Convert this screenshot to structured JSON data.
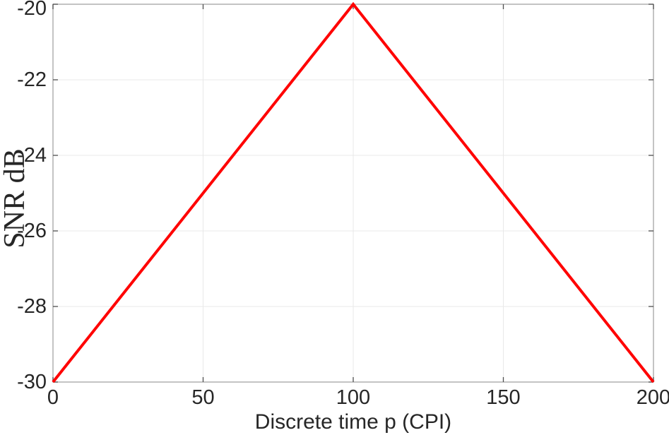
{
  "chart_data": {
    "type": "line",
    "title": "",
    "xlabel": "Discrete time p (CPI)",
    "ylabel": "SNR dB",
    "xlim": [
      0,
      200
    ],
    "ylim": [
      -30,
      -20
    ],
    "xticks": [
      0,
      50,
      100,
      150,
      200
    ],
    "yticks": [
      -30,
      -28,
      -26,
      -24,
      -22,
      -20
    ],
    "xtick_labels": [
      "0",
      "50",
      "100",
      "150",
      "200"
    ],
    "ytick_labels": [
      "-30",
      "-28",
      "-26",
      "-24",
      "-22",
      "-20"
    ],
    "grid": true,
    "legend_position": "none",
    "series": [
      {
        "name": "SNR",
        "x": [
          0,
          100,
          200
        ],
        "y": [
          -30,
          -20,
          -30
        ],
        "color": "#ff0000",
        "line_width": 4
      }
    ],
    "colors": {
      "line": "#ff0000",
      "plot_border": "#a3a3a3",
      "tick_mark": "#4f4f4f",
      "grid_line": "#e8e8e8",
      "tick_label": "#262626",
      "background": "#ffffff"
    }
  }
}
